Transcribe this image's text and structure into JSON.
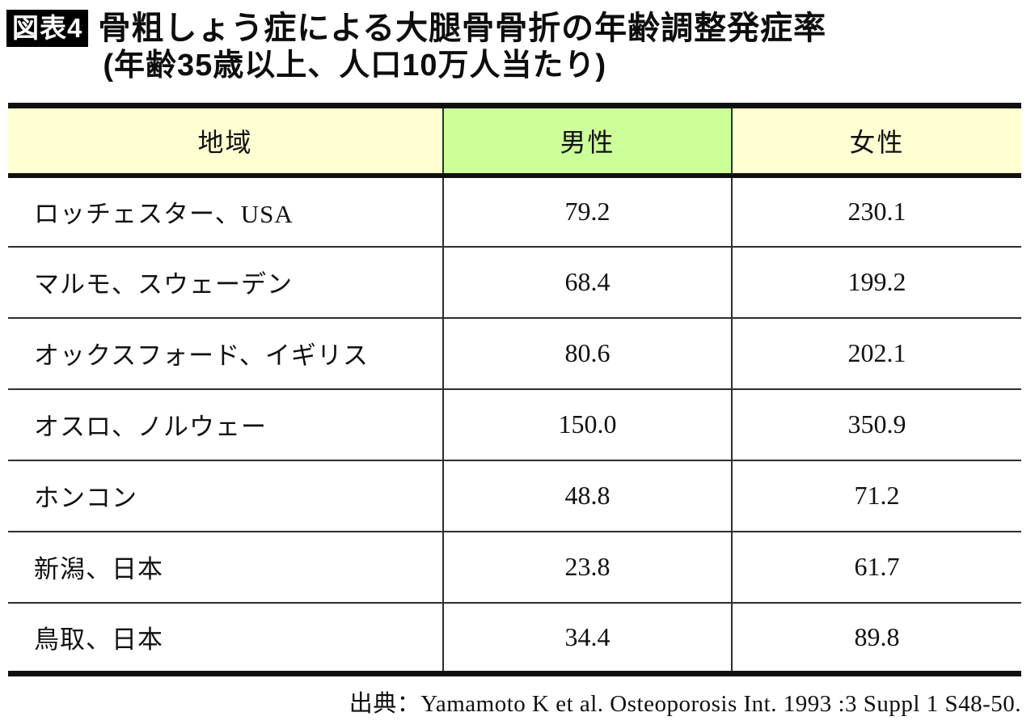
{
  "figure": {
    "badge": "図表4",
    "title_line1": "骨粗しょう症による大腿骨骨折の年齢調整発症率",
    "title_line2": "(年齢35歳以上、人口10万人当たり)"
  },
  "table": {
    "headers": [
      "地域",
      "男性",
      "女性"
    ],
    "rows": [
      {
        "region": "ロッチェスター、USA",
        "male": "79.2",
        "female": "230.1"
      },
      {
        "region": "マルモ、スウェーデン",
        "male": "68.4",
        "female": "199.2"
      },
      {
        "region": "オックスフォード、イギリス",
        "male": "80.6",
        "female": "202.1"
      },
      {
        "region": "オスロ、ノルウェー",
        "male": "150.0",
        "female": "350.9"
      },
      {
        "region": "ホンコン",
        "male": "48.8",
        "female": "71.2"
      },
      {
        "region": "新潟、日本",
        "male": "23.8",
        "female": "61.7"
      },
      {
        "region": "鳥取、日本",
        "male": "34.4",
        "female": "89.8"
      }
    ]
  },
  "source": "出典：Yamamoto K et al. Osteoporosis Int. 1993 :3 Suppl 1 S48-50.",
  "colors": {
    "header_yellow": "#FFFFD2",
    "header_green": "#CCFF99",
    "badge_bg": "#000000",
    "badge_text": "#FFFFFF",
    "border_thick": "#101010",
    "border_thin": "#2e2e2e"
  },
  "chart_data": {
    "type": "table",
    "title": "骨粗しょう症による大腿骨骨折の年齢調整発症率(年齢35歳以上、人口10万人当たり)",
    "columns": [
      "地域",
      "男性",
      "女性"
    ],
    "categories": [
      "ロッチェスター、USA",
      "マルモ、スウェーデン",
      "オックスフォード、イギリス",
      "オスロ、ノルウェー",
      "ホンコン",
      "新潟、日本",
      "鳥取、日本"
    ],
    "series": [
      {
        "name": "男性",
        "values": [
          79.2,
          68.4,
          80.6,
          150.0,
          48.8,
          23.8,
          34.4
        ]
      },
      {
        "name": "女性",
        "values": [
          230.1,
          199.2,
          202.1,
          350.9,
          71.2,
          61.7,
          89.8
        ]
      }
    ],
    "source": "出典：Yamamoto K et al. Osteoporosis Int. 1993 :3 Suppl 1 S48-50."
  }
}
